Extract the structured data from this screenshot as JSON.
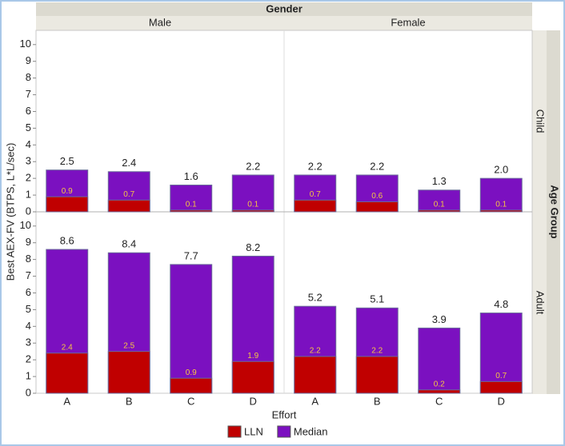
{
  "chart_data": {
    "type": "bar",
    "mode": "overlay",
    "column_label": "Gender",
    "columns": [
      "Male",
      "Female"
    ],
    "row_label": "Age Group",
    "rows": [
      "Child",
      "Adult"
    ],
    "y_label": "Best AEX-FV (BTPS, L*L/sec)",
    "x_label": "Effort",
    "categories": [
      "A",
      "B",
      "C",
      "D"
    ],
    "ylim": [
      0,
      10.85
    ],
    "yticks": [
      0,
      1,
      2,
      3,
      4,
      5,
      6,
      7,
      8,
      9,
      10
    ],
    "series": [
      {
        "name": "LLN",
        "color": "#c00000"
      },
      {
        "name": "Median",
        "color": "#7b10c0"
      }
    ],
    "panels": [
      {
        "values": [
          [
            0.9,
            0.7,
            0.1,
            0.1
          ],
          [
            2.5,
            2.4,
            1.6,
            2.2
          ]
        ],
        "value_labels": [
          [
            "0.9",
            "0.7",
            "0.1",
            "0.1"
          ],
          [
            "2.5",
            "2.4",
            "1.6",
            "2.2"
          ]
        ]
      },
      {
        "values": [
          [
            0.7,
            0.6,
            0.1,
            0.1
          ],
          [
            2.2,
            2.2,
            1.3,
            2.0
          ]
        ],
        "value_labels": [
          [
            "0.7",
            "0.6",
            "0.1",
            "0.1"
          ],
          [
            "2.2",
            "2.2",
            "1.3",
            "2.0"
          ]
        ]
      },
      {
        "values": [
          [
            2.4,
            2.5,
            0.9,
            1.9
          ],
          [
            8.6,
            8.4,
            7.7,
            8.2
          ]
        ],
        "value_labels": [
          [
            "2.4",
            "2.5",
            "0.9",
            "1.9"
          ],
          [
            "8.6",
            "8.4",
            "7.7",
            "8.2"
          ]
        ]
      },
      {
        "values": [
          [
            2.2,
            2.2,
            0.2,
            0.7
          ],
          [
            5.2,
            5.1,
            3.9,
            4.8
          ]
        ],
        "value_labels": [
          [
            "2.2",
            "2.2",
            "0.2",
            "0.7"
          ],
          [
            "5.2",
            "5.1",
            "3.9",
            "4.8"
          ]
        ]
      }
    ]
  }
}
